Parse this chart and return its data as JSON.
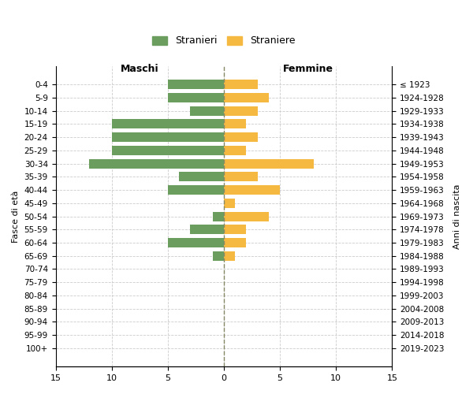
{
  "age_groups": [
    "0-4",
    "5-9",
    "10-14",
    "15-19",
    "20-24",
    "25-29",
    "30-34",
    "35-39",
    "40-44",
    "45-49",
    "50-54",
    "55-59",
    "60-64",
    "65-69",
    "70-74",
    "75-79",
    "80-84",
    "85-89",
    "90-94",
    "95-99",
    "100+"
  ],
  "birth_years": [
    "2019-2023",
    "2014-2018",
    "2009-2013",
    "2004-2008",
    "1999-2003",
    "1994-1998",
    "1989-1993",
    "1984-1988",
    "1979-1983",
    "1974-1978",
    "1969-1973",
    "1964-1968",
    "1959-1963",
    "1954-1958",
    "1949-1953",
    "1944-1948",
    "1939-1943",
    "1934-1938",
    "1929-1933",
    "1924-1928",
    "≤ 1923"
  ],
  "males": [
    5,
    5,
    3,
    10,
    10,
    10,
    12,
    4,
    5,
    0,
    1,
    3,
    5,
    1,
    0,
    0,
    0,
    0,
    0,
    0,
    0
  ],
  "females": [
    3,
    4,
    3,
    2,
    3,
    2,
    8,
    3,
    5,
    1,
    4,
    2,
    2,
    1,
    0,
    0,
    0,
    0,
    0,
    0,
    0
  ],
  "male_color": "#6b9e5e",
  "female_color": "#f5b942",
  "xlabel_left": "Maschi",
  "xlabel_right": "Femmine",
  "ylabel_left": "Fasce di età",
  "ylabel_right": "Anni di nascita",
  "legend_male": "Stranieri",
  "legend_female": "Straniere",
  "xlim": 15,
  "background_color": "#ffffff",
  "grid_color": "#cccccc",
  "dashed_line_color": "#888866"
}
